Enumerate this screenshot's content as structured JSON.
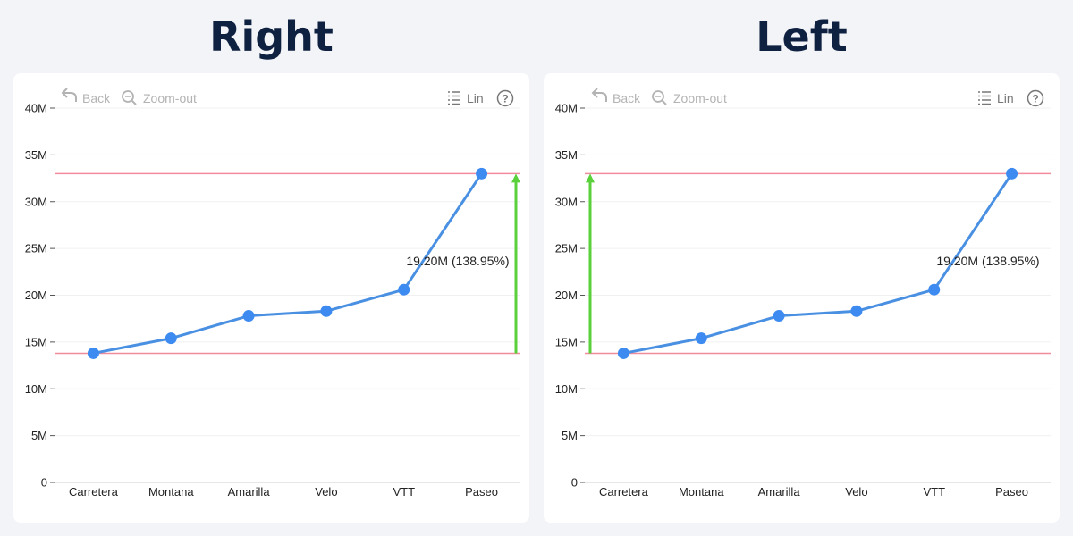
{
  "toolbar": {
    "back_label": "Back",
    "zoom_out_label": "Zoom-out",
    "scale_label": "Lin",
    "help_label": "?"
  },
  "colors": {
    "line": "#4a90e2",
    "marker": "#3d8bf0",
    "reference_line": "#f08c9b",
    "arrow": "#5ad13a"
  },
  "chart_data": [
    {
      "type": "line",
      "title": "Right",
      "categories": [
        "Carretera",
        "Montana",
        "Amarilla",
        "Velo",
        "VTT",
        "Paseo"
      ],
      "values": [
        13.8,
        15.4,
        17.8,
        18.3,
        20.6,
        33.0
      ],
      "ylim": [
        0,
        40
      ],
      "yticks": [
        0,
        5,
        10,
        15,
        20,
        25,
        30,
        35,
        40
      ],
      "ytick_labels": [
        "0",
        "5M",
        "10M",
        "15M",
        "20M",
        "25M",
        "30M",
        "35M",
        "40M"
      ],
      "reference_lines": [
        13.8,
        33.0
      ],
      "annotation": "19.20M (138.95%)",
      "arrow_side": "right",
      "grid": true
    },
    {
      "type": "line",
      "title": "Left",
      "categories": [
        "Carretera",
        "Montana",
        "Amarilla",
        "Velo",
        "VTT",
        "Paseo"
      ],
      "values": [
        13.8,
        15.4,
        17.8,
        18.3,
        20.6,
        33.0
      ],
      "ylim": [
        0,
        40
      ],
      "yticks": [
        0,
        5,
        10,
        15,
        20,
        25,
        30,
        35,
        40
      ],
      "ytick_labels": [
        "0",
        "5M",
        "10M",
        "15M",
        "20M",
        "25M",
        "30M",
        "35M",
        "40M"
      ],
      "reference_lines": [
        13.8,
        33.0
      ],
      "annotation": "19.20M (138.95%)",
      "arrow_side": "left",
      "grid": true
    }
  ]
}
